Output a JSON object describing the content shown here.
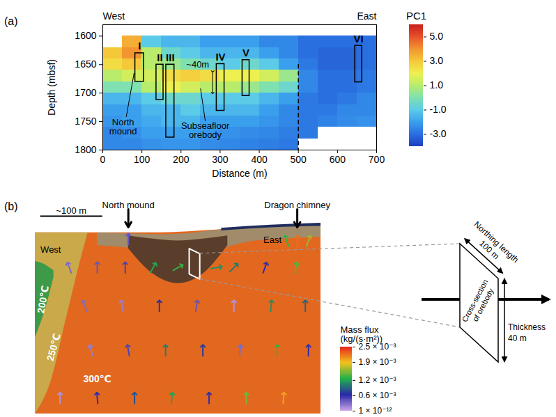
{
  "chart_data": [
    {
      "type": "heatmap",
      "panel": "(a)",
      "xlabel": "Distance (m)",
      "ylabel": "Depth (mbsf)",
      "xlim": [
        0,
        700
      ],
      "xticks": [
        0,
        100,
        200,
        300,
        400,
        500,
        600,
        700
      ],
      "ylim": [
        1580,
        1800
      ],
      "yticks": [
        1600,
        1650,
        1700,
        1750,
        1800
      ],
      "cells": {
        "x_edges": [
          0,
          50,
          100,
          150,
          200,
          250,
          300,
          350,
          400,
          450,
          500,
          550,
          600,
          650,
          700
        ],
        "y_edges": [
          1580,
          1600,
          1620,
          1640,
          1660,
          1680,
          1700,
          1720,
          1740,
          1760,
          1780,
          1800
        ],
        "values": [
          [
            null,
            null,
            null,
            null,
            null,
            null,
            null,
            null,
            null,
            null,
            null,
            null,
            null,
            null
          ],
          [
            null,
            3.5,
            -1,
            -1.5,
            -1.5,
            -2,
            -2,
            -2,
            -2.5,
            -2.5,
            -3,
            -3,
            -3,
            -3
          ],
          [
            3,
            4,
            1,
            -0.5,
            -1,
            -1.5,
            -1.5,
            -1.5,
            -2,
            -2.5,
            -3,
            -3.2,
            -3.2,
            -3
          ],
          [
            2.5,
            3,
            1,
            0.5,
            0,
            -0.5,
            -1,
            -0.5,
            -1,
            -2,
            -2.8,
            -3.2,
            -3.2,
            -3
          ],
          [
            1,
            1.5,
            1.5,
            2.5,
            2.8,
            2.5,
            2,
            2,
            1.5,
            0.5,
            -2.5,
            -3,
            -3,
            -2.8
          ],
          [
            0,
            0,
            1,
            2,
            1.5,
            1,
            1,
            0.5,
            0,
            -0.5,
            -2.5,
            -3,
            -3,
            -2.8
          ],
          [
            -1.5,
            -1.5,
            -1,
            -0.5,
            -0.5,
            -1,
            -1,
            -1,
            -1.5,
            -2,
            -2.8,
            -3,
            -2.8,
            -2.5
          ],
          [
            -2,
            -2,
            -1.5,
            -1.5,
            -1,
            -1.5,
            -1.5,
            -1.5,
            -2,
            -2.5,
            -2.8,
            -2.8,
            -2.5,
            -2.5
          ],
          [
            -2.2,
            -2,
            -1.8,
            -1.5,
            -1.5,
            -2,
            -2,
            -2,
            -2.2,
            -2.5,
            -2.8,
            -2.6,
            -2.4,
            -2.3
          ],
          [
            -2.5,
            -2.3,
            -2,
            -2,
            -2,
            -2.2,
            -2.3,
            -2.4,
            -2.5,
            -2.7,
            -2.8,
            null,
            null,
            null
          ],
          [
            -2.5,
            -2.5,
            -2.3,
            -2.2,
            -2.2,
            -2.4,
            -2.5,
            -2.6,
            -2.7,
            -2.8,
            null,
            null,
            null,
            null
          ]
        ]
      },
      "colorbar": {
        "title": "PC1",
        "lim": [
          -4,
          6
        ],
        "ticks": [
          {
            "value": -3,
            "label": "-3.0"
          },
          {
            "value": -1,
            "label": "-1.0"
          },
          {
            "value": 1,
            "label": "1.0"
          },
          {
            "value": 3,
            "label": "3.0"
          },
          {
            "value": 5,
            "label": "5.0"
          }
        ]
      },
      "boxes": [
        {
          "label": "I",
          "x": [
            83,
            105
          ],
          "depth": [
            1630,
            1680
          ]
        },
        {
          "label": "II",
          "x": [
            137,
            155
          ],
          "depth": [
            1650,
            1712
          ]
        },
        {
          "label": "III",
          "x": [
            162,
            183
          ],
          "depth": [
            1650,
            1778
          ]
        },
        {
          "label": "IV",
          "x": [
            291,
            311
          ],
          "depth": [
            1649,
            1731
          ]
        },
        {
          "label": "V",
          "x": [
            357,
            375
          ],
          "depth": [
            1642,
            1705
          ]
        },
        {
          "label": "VI",
          "x": [
            645,
            663
          ],
          "depth": [
            1617,
            1681
          ]
        }
      ],
      "divider": {
        "x": 500,
        "depth": [
          1650,
          1800
        ]
      },
      "annotations": {
        "west": "West",
        "east": "East",
        "north_mound": "North mound",
        "thickness": "~40m",
        "orebody": "Subseafloor orebody"
      }
    },
    {
      "type": "diagram",
      "panel": "(b)",
      "xlim": [
        0,
        460
      ],
      "ylim": [
        -280,
        20
      ],
      "tick_labels": false,
      "scale_bar": {
        "label": "~100 m",
        "length": 100
      },
      "labels": {
        "west": "West",
        "east": "East",
        "north_mound": "North mound",
        "dragon_chimney": "Dragon chimney"
      },
      "regions": [
        {
          "label": "300℃",
          "color": "#e2681f",
          "x": [
            0,
            100,
            200,
            300,
            400,
            460
          ],
          "top": [
            5,
            5,
            5,
            10,
            16,
            18
          ],
          "bottom": [
            -280,
            -280,
            -280,
            -280,
            -280,
            -280
          ]
        },
        {
          "label": "250℃",
          "color": "#c9a94a",
          "x": [
            0,
            25,
            50,
            70,
            85
          ],
          "top": [
            5,
            5,
            5,
            5,
            5
          ],
          "bottom": [
            -280,
            -230,
            -130,
            -50,
            5
          ]
        },
        {
          "label": "200℃",
          "color": "#3d9a48",
          "x": [
            0,
            15,
            30
          ],
          "top": [
            -40,
            -45,
            -55
          ],
          "bottom": [
            -160,
            -120,
            -65
          ]
        },
        {
          "color": "#a08c6a",
          "x": [
            100,
            160,
            200,
            260,
            300,
            340,
            400,
            460
          ],
          "top": [
            5,
            3,
            2,
            5,
            10,
            14,
            16,
            18
          ],
          "bottom": [
            -15,
            -20,
            -25,
            -25,
            -20,
            -10,
            -5,
            -2
          ]
        },
        {
          "color": "#5a3d2b",
          "x": [
            150,
            190,
            230,
            270,
            310
          ],
          "top": [
            0,
            -5,
            -8,
            -5,
            0
          ],
          "bottom": [
            -20,
            -60,
            -75,
            -60,
            -15
          ]
        },
        {
          "color": "#1f2d5c",
          "x": [
            300,
            380,
            460
          ],
          "top": [
            12,
            17,
            20
          ],
          "bottom": [
            8,
            13,
            15
          ]
        }
      ],
      "arrows": {
        "x": [
          40,
          100,
          160,
          220,
          280,
          340,
          400,
          90,
          150,
          210,
          270,
          330,
          390,
          440,
          80,
          140,
          200,
          260,
          320,
          380,
          435,
          55,
          100,
          145,
          190,
          230,
          292,
          320,
          370,
          420,
          150,
          405,
          422,
          440
        ],
        "y": [
          -255,
          -255,
          -255,
          -255,
          -255,
          -255,
          -255,
          -180,
          -180,
          -180,
          -180,
          -180,
          -180,
          -180,
          -110,
          -110,
          -110,
          -110,
          -110,
          -110,
          -110,
          -50,
          -50,
          -50,
          -50,
          -50,
          -50,
          -50,
          -50,
          -50,
          -5,
          -8,
          -8,
          -8
        ],
        "angle": [
          0,
          -5,
          0,
          5,
          0,
          0,
          5,
          -15,
          -10,
          0,
          0,
          5,
          0,
          0,
          -20,
          -10,
          0,
          10,
          0,
          5,
          0,
          -20,
          0,
          0,
          30,
          60,
          80,
          45,
          20,
          10,
          0,
          -20,
          0,
          20
        ],
        "flux": [
          0.0001,
          0.0006,
          0.0008,
          0.0012,
          0.0006,
          0.0015,
          0.002,
          0.0002,
          0.0005,
          0.001,
          0.0007,
          0.0003,
          0.0013,
          0.0006,
          0.0003,
          0.0002,
          0.0006,
          0.0004,
          0.0001,
          0.0011,
          0.0009,
          0.0003,
          0.0004,
          0.0005,
          0.0012,
          0.0013,
          0.0011,
          0.001,
          0.0006,
          0.0014,
          0.0004,
          0.0013,
          0.0022,
          0.0016
        ]
      },
      "colorbar": {
        "title": "Mass flux (kg/(s·m²))",
        "lim": [
          1e-12,
          0.0025
        ],
        "ticks": [
          {
            "value": 1e-12,
            "label": "1 × 10⁻¹²"
          },
          {
            "value": 0.0006,
            "label": "0.6 × 10⁻³"
          },
          {
            "value": 0.0012,
            "label": "1.2 × 10⁻³"
          },
          {
            "value": 0.0019,
            "label": "1.9 × 10⁻³"
          },
          {
            "value": 0.0025,
            "label": "2.5 × 10⁻³"
          }
        ]
      },
      "inset": {
        "northing": "Northing length",
        "northing_value": "100 m",
        "thickness": "Thickness",
        "thickness_value": "40 m",
        "cross_section": "Cross-section of orebody"
      }
    }
  ]
}
